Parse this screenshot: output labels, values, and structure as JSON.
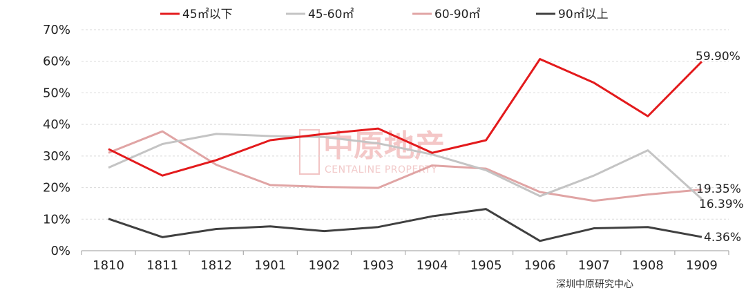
{
  "chart_data": {
    "type": "line",
    "title": "",
    "xlabel": "",
    "ylabel": "",
    "x": [
      "1810",
      "1811",
      "1812",
      "1901",
      "1902",
      "1903",
      "1904",
      "1905",
      "1906",
      "1907",
      "1908",
      "1909"
    ],
    "ylim": [
      0,
      70
    ],
    "yticks": [
      "0%",
      "10%",
      "20%",
      "30%",
      "40%",
      "50%",
      "60%",
      "70%"
    ],
    "grid": "horizontal-dashed",
    "legend_position": "top",
    "series": [
      {
        "name": "45㎡以下",
        "color": "#e31a1c",
        "values": [
          32.2,
          23.8,
          28.7,
          35.0,
          37.0,
          38.7,
          31.0,
          35.0,
          60.7,
          53.2,
          42.6,
          59.9
        ],
        "end_label": "59.90%"
      },
      {
        "name": "45-60㎡",
        "color": "#c4c4c4",
        "values": [
          26.3,
          33.8,
          37.0,
          36.3,
          36.0,
          34.0,
          30.5,
          25.5,
          17.3,
          23.8,
          31.8,
          16.39
        ],
        "end_label": "16.39%"
      },
      {
        "name": "60-90㎡",
        "color": "#e0a4a4",
        "values": [
          31.0,
          37.8,
          27.2,
          20.8,
          20.2,
          19.9,
          27.0,
          26.0,
          18.6,
          15.8,
          17.8,
          19.35
        ],
        "end_label": "19.35%"
      },
      {
        "name": "90㎡以上",
        "color": "#404040",
        "values": [
          10.1,
          4.3,
          6.9,
          7.7,
          6.2,
          7.5,
          10.9,
          13.2,
          3.1,
          7.1,
          7.5,
          4.36
        ],
        "end_label": "4.36%"
      }
    ]
  },
  "source": "深圳中原研究中心",
  "watermark": {
    "cn": "中原地产",
    "en": "CENTALINE PROPERTY"
  }
}
